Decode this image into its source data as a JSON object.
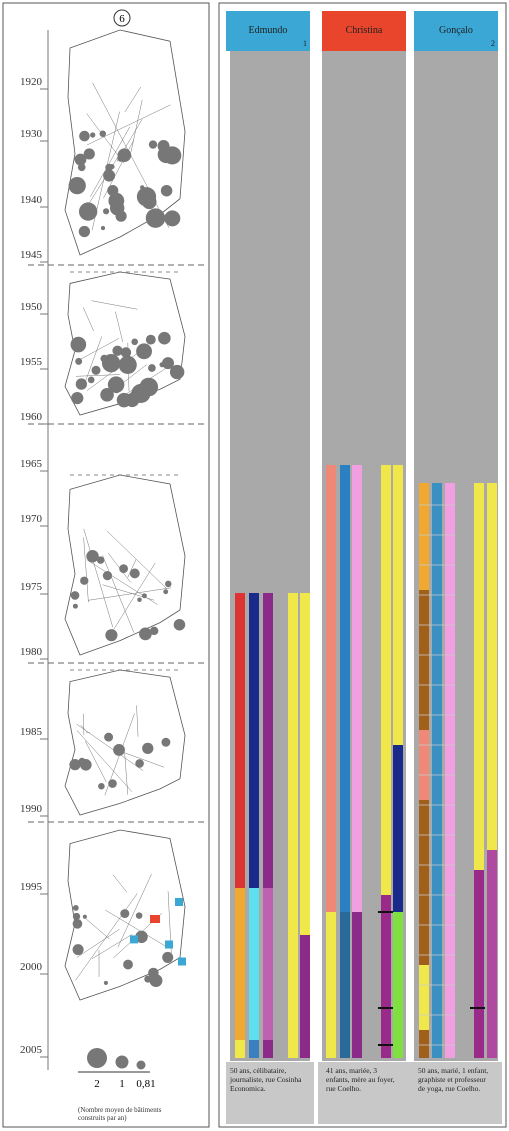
{
  "badge": "6",
  "years": [
    "1920",
    "1930",
    "1940",
    "1945",
    "1950",
    "1955",
    "1960",
    "1965",
    "1970",
    "1975",
    "1980",
    "1985",
    "1990",
    "1995",
    "2000",
    "2005"
  ],
  "legend": {
    "sizes": [
      "2",
      "1",
      "0,81"
    ],
    "caption": "(Nombre moyen de bâtiments construits par an)"
  },
  "people": [
    {
      "name": "Edmundo",
      "number": "1",
      "description": "50 ans, célibataire, journaliste, rue Cosinha Economica."
    },
    {
      "name": "Christina",
      "description": "41 ans, mariée, 3 enfants, mère au foyer, rue Coelho."
    },
    {
      "name": "Gonçalo",
      "number": "2",
      "description": "50 ans, marié, 1 enfant, graphiste et professeur de yoga, rue Coelho."
    }
  ]
}
